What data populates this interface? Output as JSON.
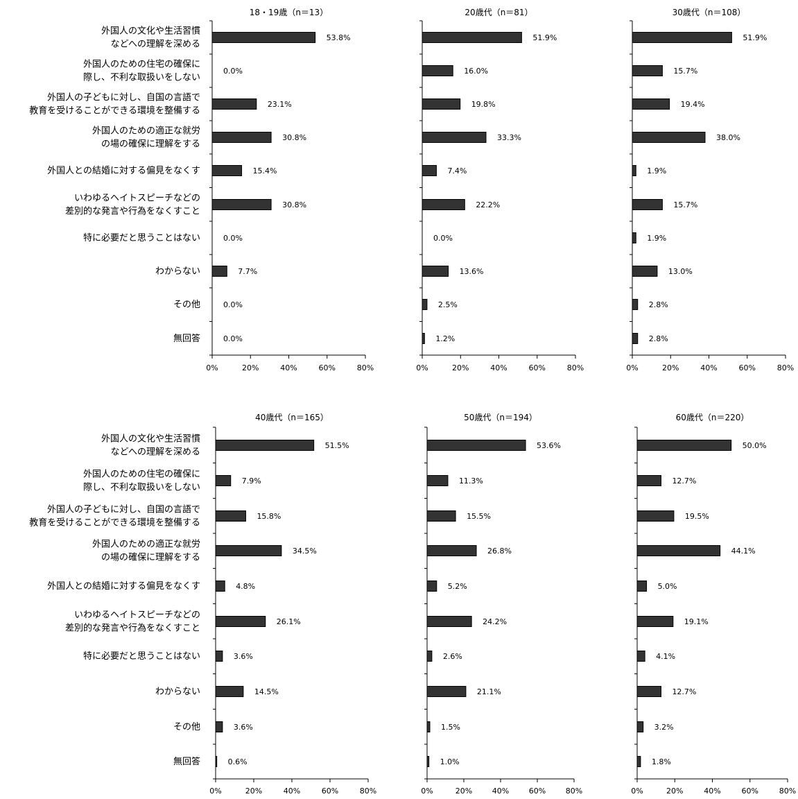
{
  "categories": [
    "外国人の文化や生活習慣\nなどへの理解を深める",
    "外国人のための住宅の確保に\n際し、不利な取扱いをしない",
    "外国人の子どもに対し、自国の言語で\n教育を受けることができる環境を整備する",
    "外国人のための適正な就労\nの場の確保に理解をする",
    "外国人との結婚に対する偏見をなくす",
    "いわゆるヘイトスピーチなどの\n差別的な発言や行為をなくすこと",
    "特に必要だと思うことはない",
    "わからない",
    "その他",
    "無回答"
  ],
  "colors": {
    "bar": "#333333",
    "bar_stroke": "#000000",
    "axis": "#000000"
  },
  "chart_data": [
    {
      "type": "bar",
      "title": "18・19歳（n＝13）",
      "values": [
        53.8,
        0.0,
        23.1,
        30.8,
        15.4,
        30.8,
        0.0,
        7.7,
        0.0,
        0.0
      ],
      "value_labels": [
        "53.8%",
        "0.0%",
        "23.1%",
        "30.8%",
        "15.4%",
        "30.8%",
        "0.0%",
        "7.7%",
        "0.0%",
        "0.0%"
      ],
      "xlim": [
        0,
        80
      ],
      "ticks": [
        "0%",
        "20%",
        "40%",
        "60%",
        "80%"
      ],
      "grid": false
    },
    {
      "type": "bar",
      "title": "20歳代（n＝81）",
      "values": [
        51.9,
        16.0,
        19.8,
        33.3,
        7.4,
        22.2,
        0.0,
        13.6,
        2.5,
        1.2
      ],
      "value_labels": [
        "51.9%",
        "16.0%",
        "19.8%",
        "33.3%",
        "7.4%",
        "22.2%",
        "0.0%",
        "13.6%",
        "2.5%",
        "1.2%"
      ],
      "xlim": [
        0,
        80
      ],
      "ticks": [
        "0%",
        "20%",
        "40%",
        "60%",
        "80%"
      ],
      "grid": false
    },
    {
      "type": "bar",
      "title": "30歳代（n＝108）",
      "values": [
        51.9,
        15.7,
        19.4,
        38.0,
        1.9,
        15.7,
        1.9,
        13.0,
        2.8,
        2.8
      ],
      "value_labels": [
        "51.9%",
        "15.7%",
        "19.4%",
        "38.0%",
        "1.9%",
        "15.7%",
        "1.9%",
        "13.0%",
        "2.8%",
        "2.8%"
      ],
      "xlim": [
        0,
        80
      ],
      "ticks": [
        "0%",
        "20%",
        "40%",
        "60%",
        "80%"
      ],
      "grid": false
    },
    {
      "type": "bar",
      "title": "40歳代（n＝165）",
      "values": [
        51.5,
        7.9,
        15.8,
        34.5,
        4.8,
        26.1,
        3.6,
        14.5,
        3.6,
        0.6
      ],
      "value_labels": [
        "51.5%",
        "7.9%",
        "15.8%",
        "34.5%",
        "4.8%",
        "26.1%",
        "3.6%",
        "14.5%",
        "3.6%",
        "0.6%"
      ],
      "xlim": [
        0,
        80
      ],
      "ticks": [
        "0%",
        "20%",
        "40%",
        "60%",
        "80%"
      ],
      "grid": false
    },
    {
      "type": "bar",
      "title": "50歳代（n＝194）",
      "values": [
        53.6,
        11.3,
        15.5,
        26.8,
        5.2,
        24.2,
        2.6,
        21.1,
        1.5,
        1.0
      ],
      "value_labels": [
        "53.6%",
        "11.3%",
        "15.5%",
        "26.8%",
        "5.2%",
        "24.2%",
        "2.6%",
        "21.1%",
        "1.5%",
        "1.0%"
      ],
      "xlim": [
        0,
        80
      ],
      "ticks": [
        "0%",
        "20%",
        "40%",
        "60%",
        "80%"
      ],
      "grid": false
    },
    {
      "type": "bar",
      "title": "60歳代（n＝220）",
      "values": [
        50.0,
        12.7,
        19.5,
        44.1,
        5.0,
        19.1,
        4.1,
        12.7,
        3.2,
        1.8
      ],
      "value_labels": [
        "50.0%",
        "12.7%",
        "19.5%",
        "44.1%",
        "5.0%",
        "19.1%",
        "4.1%",
        "12.7%",
        "3.2%",
        "1.8%"
      ],
      "xlim": [
        0,
        80
      ],
      "ticks": [
        "0%",
        "20%",
        "40%",
        "60%",
        "80%"
      ],
      "grid": false
    }
  ]
}
